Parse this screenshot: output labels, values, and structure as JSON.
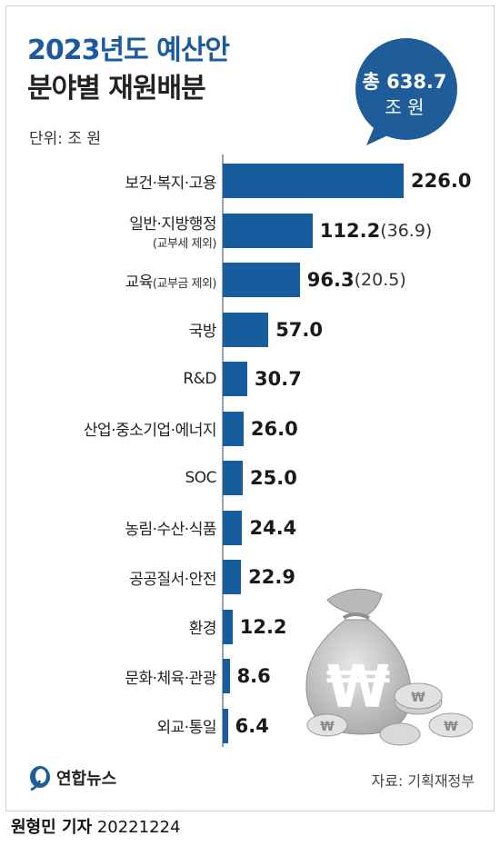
{
  "title_line1": "2023년도 예산안",
  "title_line2": "분야별 재원배분",
  "unit_label": "단위: 조 원",
  "total_bubble": {
    "line1": "총 638.7",
    "line2": "조 원"
  },
  "source": "자료: 기획재정부",
  "agency": "연합뉴스",
  "byline": {
    "reporter": "원형민 기자",
    "date": "20221224"
  },
  "colors": {
    "bar": "#175c9c",
    "title_accent": "#1c5aa0",
    "bubble": "#1f5d9a"
  },
  "icons": [
    "money-bag-icon",
    "won-coin-icon",
    "yonhap-logo-icon"
  ],
  "chart_data": {
    "type": "bar",
    "orientation": "horizontal",
    "title": "2023년도 예산안 분야별 재원배분",
    "xlabel": "",
    "ylabel": "",
    "unit": "조 원",
    "xlim": [
      0,
      226.0
    ],
    "grid": false,
    "categories": [
      {
        "label": "보건·복지·고용",
        "note": ""
      },
      {
        "label": "일반·지방행정",
        "note": "(교부세 제외)"
      },
      {
        "label": "교육",
        "note": "(교부금 제외)"
      },
      {
        "label": "국방",
        "note": ""
      },
      {
        "label": "R&D",
        "note": ""
      },
      {
        "label": "산업·중소기업·에너지",
        "note": ""
      },
      {
        "label": "SOC",
        "note": ""
      },
      {
        "label": "농림·수산·식품",
        "note": ""
      },
      {
        "label": "공공질서·안전",
        "note": ""
      },
      {
        "label": "환경",
        "note": ""
      },
      {
        "label": "문화·체육·관광",
        "note": ""
      },
      {
        "label": "외교·통일",
        "note": ""
      }
    ],
    "values": [
      226.0,
      112.2,
      96.3,
      57.0,
      30.7,
      26.0,
      25.0,
      24.4,
      22.9,
      12.2,
      8.6,
      6.4
    ],
    "value_labels": [
      "226.0",
      "112.2",
      "96.3",
      "57.0",
      "30.7",
      "26.0",
      "25.0",
      "24.4",
      "22.9",
      "12.2",
      "8.6",
      "6.4"
    ],
    "paren_labels": [
      "",
      "(36.9)",
      "(20.5)",
      "",
      "",
      "",
      "",
      "",
      "",
      "",
      "",
      ""
    ]
  }
}
